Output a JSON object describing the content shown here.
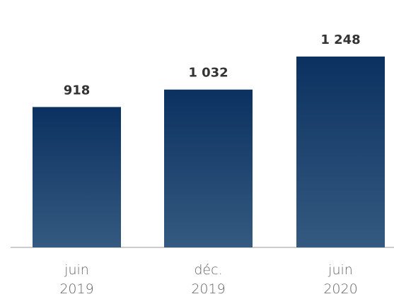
{
  "chart_data": {
    "type": "bar",
    "categories": [
      "juin 2019",
      "déc. 2019",
      "juin 2020"
    ],
    "values": [
      918,
      1032,
      1248
    ],
    "value_labels": [
      "918",
      "1 032",
      "1 248"
    ],
    "color": "#0b3161"
  }
}
